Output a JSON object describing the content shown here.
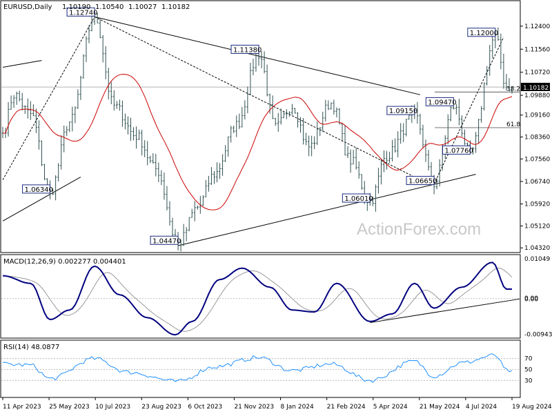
{
  "chart_data": {
    "type": "candlestick",
    "symbol_label": "EURUSD,Daily",
    "ohlc": [
      "1.10190",
      "1.10540",
      "1.10027",
      "1.10182"
    ],
    "current_price": 1.10182,
    "current_price_label": "1.10182",
    "watermark": "ActionForex.com",
    "price_ticks": [
      "1.12400",
      "1.11560",
      "1.10720",
      "1.09880",
      "1.09160",
      "1.08360",
      "1.07560",
      "1.06740",
      "1.05920",
      "1.05120",
      "1.04320"
    ],
    "date_ticks": [
      "11 Apr 2023",
      "25 May 2023",
      "10 Jul 2023",
      "23 Aug 2023",
      "6 Oct 2023",
      "21 Nov 2023",
      "8 Jan 2024",
      "21 Feb 2024",
      "5 Apr 2024",
      "21 May 2024",
      "4 Jul 2024",
      "19 Aug 2024"
    ],
    "annotations": [
      {
        "label": "1.12740",
        "price": 1.1274,
        "idx": 33
      },
      {
        "label": "1.11380",
        "price": 1.1138,
        "idx": 92
      },
      {
        "label": "1.06340",
        "price": 1.0634,
        "idx": 17
      },
      {
        "label": "1.04470",
        "price": 1.0447,
        "idx": 63
      },
      {
        "label": "1.06010",
        "price": 1.0601,
        "idx": 132
      },
      {
        "label": "1.09150",
        "price": 1.0915,
        "idx": 148
      },
      {
        "label": "1.06650",
        "price": 1.0665,
        "idx": 155
      },
      {
        "label": "1.09470",
        "price": 1.0947,
        "idx": 162
      },
      {
        "label": "1.07760",
        "price": 1.0776,
        "idx": 168
      },
      {
        "label": "1.12000",
        "price": 1.12,
        "idx": 177
      }
    ],
    "fib_levels": [
      {
        "label": "38.2",
        "price": 1.1
      },
      {
        "label": "61.8",
        "price": 1.087
      }
    ],
    "key_points": [
      {
        "idx": 0,
        "price": 1.085
      },
      {
        "idx": 4,
        "price": 1.099
      },
      {
        "idx": 10,
        "price": 1.092
      },
      {
        "idx": 17,
        "price": 1.0634
      },
      {
        "idx": 24,
        "price": 1.089
      },
      {
        "idx": 33,
        "price": 1.1274
      },
      {
        "idx": 40,
        "price": 1.095
      },
      {
        "idx": 48,
        "price": 1.084
      },
      {
        "idx": 55,
        "price": 1.072
      },
      {
        "idx": 63,
        "price": 1.0447
      },
      {
        "idx": 70,
        "price": 1.058
      },
      {
        "idx": 76,
        "price": 1.07
      },
      {
        "idx": 84,
        "price": 1.088
      },
      {
        "idx": 92,
        "price": 1.1138
      },
      {
        "idx": 98,
        "price": 1.087
      },
      {
        "idx": 104,
        "price": 1.095
      },
      {
        "idx": 110,
        "price": 1.08
      },
      {
        "idx": 118,
        "price": 1.096
      },
      {
        "idx": 125,
        "price": 1.075
      },
      {
        "idx": 132,
        "price": 1.0601
      },
      {
        "idx": 138,
        "price": 1.077
      },
      {
        "idx": 148,
        "price": 1.0915
      },
      {
        "idx": 155,
        "price": 1.0665
      },
      {
        "idx": 162,
        "price": 1.0947
      },
      {
        "idx": 168,
        "price": 1.0776
      },
      {
        "idx": 177,
        "price": 1.12
      },
      {
        "idx": 181,
        "price": 1.1018
      }
    ],
    "macd": {
      "label": "MACD(12,26,9) 0.002277 0.004401",
      "ticks": [
        "0.01049",
        "0.00",
        "0.00",
        "-0.009435"
      ],
      "key_points": [
        {
          "idx": 0,
          "value": 0.006
        },
        {
          "idx": 10,
          "value": 0.004
        },
        {
          "idx": 17,
          "value": -0.0055
        },
        {
          "idx": 24,
          "value": -0.003
        },
        {
          "idx": 33,
          "value": 0.0085
        },
        {
          "idx": 42,
          "value": 0.001
        },
        {
          "idx": 52,
          "value": -0.005
        },
        {
          "idx": 62,
          "value": -0.0095
        },
        {
          "idx": 68,
          "value": -0.006
        },
        {
          "idx": 78,
          "value": 0.005
        },
        {
          "idx": 86,
          "value": 0.008
        },
        {
          "idx": 96,
          "value": 0.003
        },
        {
          "idx": 104,
          "value": -0.003
        },
        {
          "idx": 112,
          "value": -0.0035
        },
        {
          "idx": 120,
          "value": 0.004
        },
        {
          "idx": 132,
          "value": -0.006
        },
        {
          "idx": 140,
          "value": -0.004
        },
        {
          "idx": 148,
          "value": 0.004
        },
        {
          "idx": 155,
          "value": -0.0025
        },
        {
          "idx": 165,
          "value": 0.003
        },
        {
          "idx": 176,
          "value": 0.0095
        },
        {
          "idx": 181,
          "value": 0.0025
        }
      ]
    },
    "rsi": {
      "label": "RSI(14) 48.0877",
      "ticks": [
        "70",
        "50",
        "30"
      ],
      "value_ticks": [
        70,
        50,
        30
      ],
      "key_points": [
        {
          "idx": 0,
          "value": 60
        },
        {
          "idx": 10,
          "value": 58
        },
        {
          "idx": 17,
          "value": 33
        },
        {
          "idx": 33,
          "value": 70
        },
        {
          "idx": 45,
          "value": 45
        },
        {
          "idx": 63,
          "value": 28
        },
        {
          "idx": 76,
          "value": 55
        },
        {
          "idx": 92,
          "value": 72
        },
        {
          "idx": 104,
          "value": 48
        },
        {
          "idx": 118,
          "value": 60
        },
        {
          "idx": 132,
          "value": 30
        },
        {
          "idx": 148,
          "value": 65
        },
        {
          "idx": 155,
          "value": 38
        },
        {
          "idx": 165,
          "value": 62
        },
        {
          "idx": 177,
          "value": 76
        },
        {
          "idx": 181,
          "value": 48
        }
      ]
    }
  }
}
